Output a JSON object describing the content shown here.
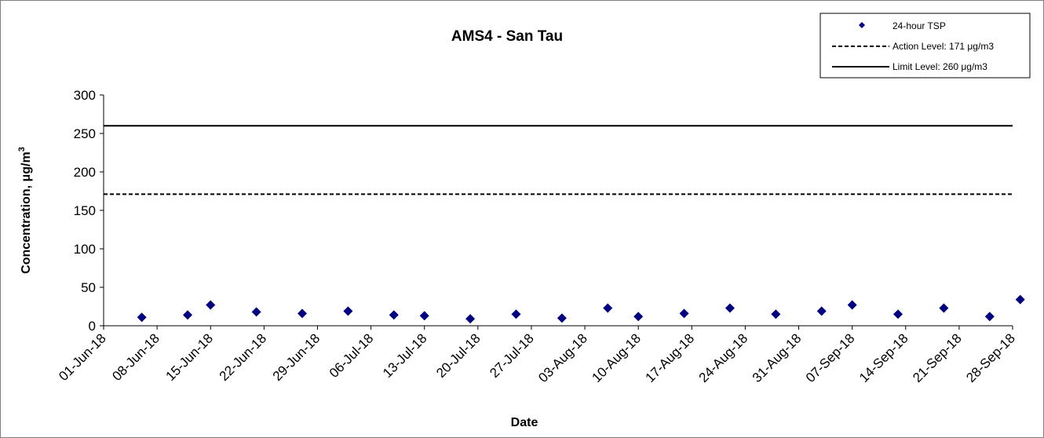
{
  "chart_data": {
    "type": "scatter",
    "title": "AMS4 - San Tau",
    "xlabel": "Date",
    "ylabel": "Concentration, μg/m",
    "ylabel_superscript": "3",
    "ylim": [
      0,
      300
    ],
    "yticks": [
      0,
      50,
      100,
      150,
      200,
      250,
      300
    ],
    "xlim": [
      "2018-06-01",
      "2018-09-28"
    ],
    "xticks": [
      "01-Jun-18",
      "08-Jun-18",
      "15-Jun-18",
      "22-Jun-18",
      "29-Jun-18",
      "06-Jul-18",
      "13-Jul-18",
      "20-Jul-18",
      "27-Jul-18",
      "03-Aug-18",
      "10-Aug-18",
      "17-Aug-18",
      "24-Aug-18",
      "31-Aug-18",
      "07-Sep-18",
      "14-Sep-18",
      "21-Sep-18",
      "28-Sep-18"
    ],
    "grid": false,
    "legend_position": "top-right",
    "series": [
      {
        "name": "24-hour TSP",
        "kind": "points",
        "marker": "diamond",
        "color": "#000080",
        "points": [
          {
            "x": "2018-06-06",
            "y": 11
          },
          {
            "x": "2018-06-12",
            "y": 14
          },
          {
            "x": "2018-06-15",
            "y": 27
          },
          {
            "x": "2018-06-21",
            "y": 18
          },
          {
            "x": "2018-06-27",
            "y": 16
          },
          {
            "x": "2018-07-03",
            "y": 19
          },
          {
            "x": "2018-07-09",
            "y": 14
          },
          {
            "x": "2018-07-13",
            "y": 13
          },
          {
            "x": "2018-07-19",
            "y": 9
          },
          {
            "x": "2018-07-25",
            "y": 15
          },
          {
            "x": "2018-07-31",
            "y": 10
          },
          {
            "x": "2018-08-06",
            "y": 23
          },
          {
            "x": "2018-08-10",
            "y": 12
          },
          {
            "x": "2018-08-16",
            "y": 16
          },
          {
            "x": "2018-08-22",
            "y": 23
          },
          {
            "x": "2018-08-28",
            "y": 15
          },
          {
            "x": "2018-09-03",
            "y": 19
          },
          {
            "x": "2018-09-07",
            "y": 27
          },
          {
            "x": "2018-09-13",
            "y": 15
          },
          {
            "x": "2018-09-19",
            "y": 23
          },
          {
            "x": "2018-09-25",
            "y": 12
          },
          {
            "x": "2018-09-29",
            "y": 34
          }
        ]
      },
      {
        "name": "Action Level: 171 μg/m3",
        "kind": "hline",
        "value": 171,
        "style": "dashed",
        "color": "#000000"
      },
      {
        "name": "Limit Level: 260 μg/m3",
        "kind": "hline",
        "value": 260,
        "style": "solid",
        "color": "#000000"
      }
    ]
  }
}
